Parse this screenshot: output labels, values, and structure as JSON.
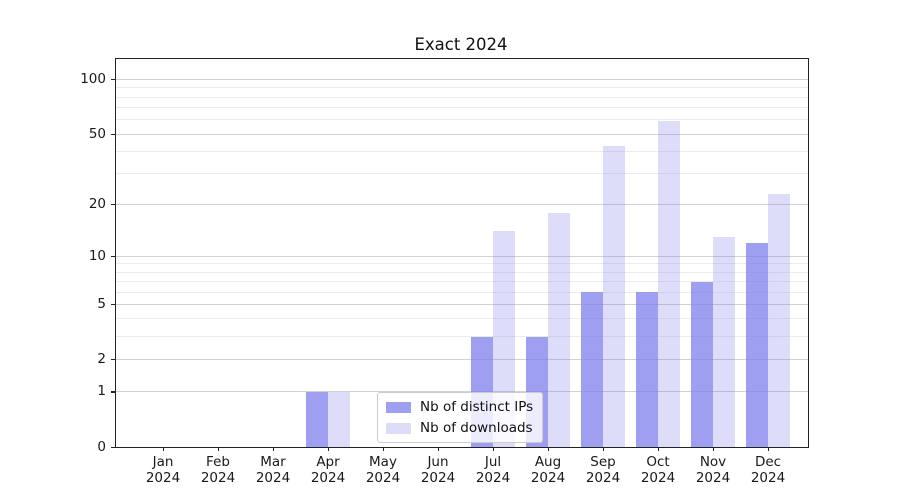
{
  "title": "Exact 2024",
  "chart_data": {
    "type": "bar",
    "title": "Exact 2024",
    "categories": [
      "Jan 2024",
      "Feb 2024",
      "Mar 2024",
      "Apr 2024",
      "May 2024",
      "Jun 2024",
      "Jul 2024",
      "Aug 2024",
      "Sep 2024",
      "Oct 2024",
      "Nov 2024",
      "Dec 2024"
    ],
    "series": [
      {
        "name": "Nb of distinct IPs",
        "values": [
          0,
          0,
          0,
          1,
          0,
          0,
          3,
          3,
          6,
          6,
          7,
          12
        ],
        "color": "rgba(122,122,235,0.72)"
      },
      {
        "name": "Nb of downloads",
        "values": [
          0,
          0,
          0,
          1,
          0,
          0,
          14,
          18,
          43,
          59,
          13,
          23
        ],
        "color": "rgba(122,122,235,0.26)"
      }
    ],
    "xlabel": "",
    "ylabel": "",
    "yscale": "log1p",
    "yticks": [
      0,
      1,
      2,
      5,
      10,
      20,
      50,
      100
    ],
    "yticks_minor": [
      3,
      4,
      6,
      7,
      8,
      9,
      30,
      40,
      60,
      70,
      80,
      90
    ],
    "ylim": [
      0,
      130
    ],
    "grid": true,
    "legend_position": "lower center"
  },
  "colors": {
    "bar_distinct_ips": "rgba(122,122,235,0.72)",
    "bar_downloads": "rgba(122,122,235,0.26)",
    "grid_major": "#d2d2d2",
    "grid_minor": "#ececec",
    "spine": "#222222",
    "text": "#1a1a1a"
  }
}
